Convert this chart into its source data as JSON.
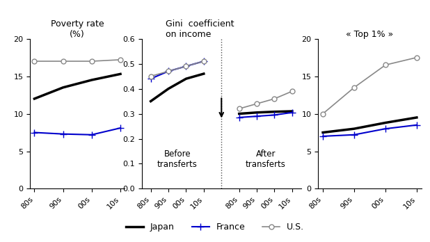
{
  "x_labels": [
    "80s",
    "90s",
    "00s",
    "10s"
  ],
  "x": [
    0,
    1,
    2,
    3
  ],
  "panel1": {
    "title": "Poverty rate\n(%)",
    "ylim": [
      0,
      20
    ],
    "yticks": [
      0,
      5,
      10,
      15,
      20
    ],
    "japan": [
      12.0,
      13.5,
      14.5,
      15.3
    ],
    "france": [
      7.5,
      7.3,
      7.2,
      8.1
    ],
    "us": [
      17.0,
      17.0,
      17.0,
      17.2
    ]
  },
  "panel2_before": {
    "title": "Gini  coefficient\non income",
    "ylim": [
      0.0,
      0.6
    ],
    "yticks": [
      0.0,
      0.1,
      0.2,
      0.3,
      0.4,
      0.5,
      0.6
    ],
    "x": [
      0,
      1,
      2,
      3
    ],
    "japan": [
      0.35,
      0.4,
      0.44,
      0.46
    ],
    "france": [
      0.44,
      0.47,
      0.49,
      0.51
    ],
    "us": [
      0.45,
      0.47,
      0.49,
      0.51
    ]
  },
  "panel2_after": {
    "x": [
      0,
      1,
      2,
      3
    ],
    "japan": [
      0.3,
      0.305,
      0.308,
      0.31
    ],
    "france": [
      0.285,
      0.29,
      0.295,
      0.305
    ],
    "us": [
      0.32,
      0.34,
      0.36,
      0.39
    ],
    "label_before": "Before\ntransferts",
    "label_after": "After\ntransferts"
  },
  "panel3": {
    "title": "« Top 1% »",
    "ylim": [
      0,
      20
    ],
    "yticks": [
      0,
      5,
      10,
      15,
      20
    ],
    "japan": [
      7.5,
      8.0,
      8.8,
      9.5
    ],
    "france": [
      7.0,
      7.2,
      8.0,
      8.5
    ],
    "us": [
      10.0,
      13.5,
      16.5,
      17.5
    ]
  },
  "colors": {
    "japan": "#000000",
    "france": "#0000cc",
    "us": "#888888"
  },
  "legend": {
    "japan": "Japan",
    "france": "France",
    "us": "U.S."
  }
}
